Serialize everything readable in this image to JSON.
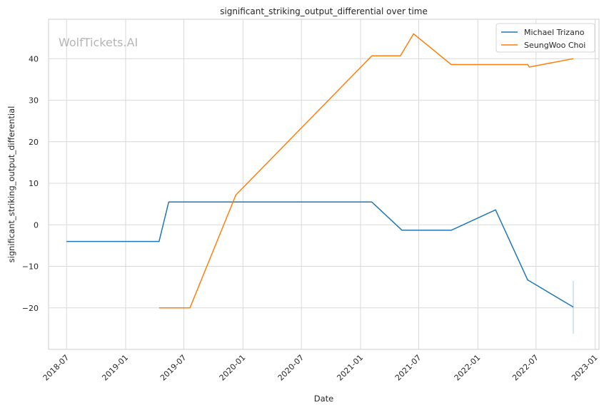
{
  "chart_data": {
    "type": "line",
    "title": "significant_striking_output_differential over time",
    "xlabel": "Date",
    "ylabel": "significant_striking_output_differential",
    "watermark": "WolfTickets.AI",
    "x_range": [
      "2018-05-06",
      "2023-01-13"
    ],
    "ylim": [
      -30,
      49.5
    ],
    "x_ticks": [
      "2018-07",
      "2019-01",
      "2019-07",
      "2020-01",
      "2020-07",
      "2021-01",
      "2021-07",
      "2022-01",
      "2022-07",
      "2023-01"
    ],
    "y_ticks": [
      -20,
      -10,
      0,
      10,
      20,
      30,
      40
    ],
    "grid": true,
    "legend_position": "top-right",
    "series": [
      {
        "name": "Michael Trizano",
        "color": "#1f77b4",
        "points": [
          [
            "2018-07-01",
            -4
          ],
          [
            "2019-04-15",
            -4
          ],
          [
            "2019-05-15",
            5.5
          ],
          [
            "2021-02-05",
            5.5
          ],
          [
            "2021-05-10",
            -1.3
          ],
          [
            "2021-10-10",
            -1.3
          ],
          [
            "2022-02-25",
            3.6
          ],
          [
            "2022-06-05",
            -13.3
          ],
          [
            "2022-06-10",
            -13.5
          ],
          [
            "2022-10-25",
            -19.8
          ]
        ]
      },
      {
        "name": "SeungWoo Choi",
        "color": "#ff7f0e",
        "points": [
          [
            "2019-04-15",
            -20
          ],
          [
            "2019-07-20",
            -20
          ],
          [
            "2019-12-10",
            7.2
          ],
          [
            "2021-02-05",
            40.7
          ],
          [
            "2021-05-05",
            40.7
          ],
          [
            "2021-06-15",
            46
          ],
          [
            "2021-10-10",
            38.6
          ],
          [
            "2022-06-05",
            38.6
          ],
          [
            "2022-06-10",
            38
          ],
          [
            "2022-10-25",
            40
          ]
        ]
      }
    ],
    "annotations": [
      {
        "kind": "vertical-segment",
        "x": "2022-10-25",
        "y_range": [
          -26.2,
          -13.5
        ],
        "color": "#a6cee3"
      }
    ]
  }
}
